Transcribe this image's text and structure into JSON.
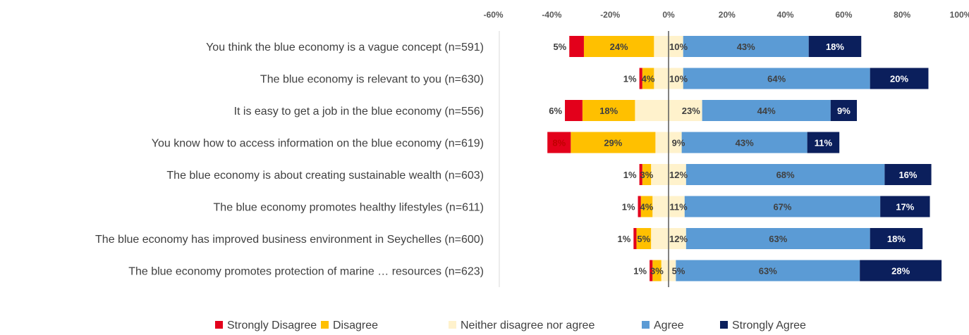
{
  "chart_data": {
    "type": "bar",
    "orientation": "horizontal",
    "stacked": "diverging",
    "xlim": [
      -60,
      100
    ],
    "x_ticks": [
      -60,
      -40,
      -20,
      0,
      20,
      40,
      60,
      80,
      100
    ],
    "x_tick_labels": [
      "-60%",
      "-40%",
      "-20%",
      "0%",
      "20%",
      "40%",
      "60%",
      "80%",
      "100%"
    ],
    "grid": false,
    "legend_position": "bottom",
    "categories": [
      "You think the blue economy is a vague concept (n=591)",
      "The blue economy is relevant to you (n=630)",
      "It is easy to get a job in the blue economy (n=556)",
      "You know how to access information on the blue economy (n=619)",
      "The blue economy is about creating sustainable wealth (n=603)",
      "The blue economy promotes healthy lifestyles (n=611)",
      "The blue economy has improved business environment in Seychelles (n=600)",
      "The blue economy promotes protection of marine … resources (n=623)"
    ],
    "series": [
      {
        "name": "Strongly Disagree",
        "color": "#e3001b",
        "values": [
          5,
          1,
          6,
          8,
          1,
          1,
          1,
          1
        ],
        "labels": [
          "5%",
          "1%",
          "6%",
          "8%",
          "1%",
          "1%",
          "1%",
          "1%"
        ]
      },
      {
        "name": "Disagree",
        "color": "#ffc000",
        "values": [
          24,
          4,
          18,
          29,
          3,
          4,
          5,
          3
        ],
        "labels": [
          "24%",
          "4%",
          "18%",
          "29%",
          "3%",
          "4%",
          "5%",
          "3%"
        ]
      },
      {
        "name": "Neither disagree nor agree",
        "color": "#fff2cc",
        "values": [
          10,
          10,
          23,
          9,
          12,
          11,
          12,
          5
        ],
        "labels": [
          "10%",
          "10%",
          "23%",
          "9%",
          "12%",
          "11%",
          "12%",
          "5%"
        ]
      },
      {
        "name": "Agree",
        "color": "#5b9bd5",
        "values": [
          43,
          64,
          44,
          43,
          68,
          67,
          63,
          63
        ],
        "labels": [
          "43%",
          "64%",
          "44%",
          "43%",
          "68%",
          "67%",
          "63%",
          "63%"
        ]
      },
      {
        "name": "Strongly Agree",
        "color": "#0b1f5c",
        "values": [
          18,
          20,
          9,
          11,
          16,
          17,
          18,
          28
        ],
        "labels": [
          "18%",
          "20%",
          "9%",
          "11%",
          "16%",
          "17%",
          "18%",
          "28%"
        ]
      }
    ]
  }
}
